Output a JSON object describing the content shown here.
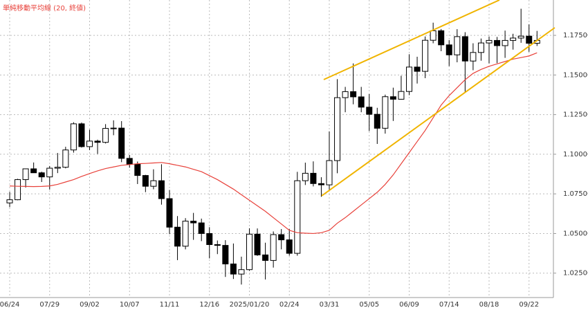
{
  "chart_data": {
    "type": "candlestick",
    "legend_text": "単純移動平均線 (20, 終値)",
    "categories": [
      "06/24",
      null,
      null,
      null,
      null,
      "07/29",
      null,
      null,
      null,
      null,
      "09/02",
      null,
      null,
      null,
      null,
      "10/07",
      null,
      null,
      null,
      null,
      "11/11",
      null,
      null,
      null,
      null,
      "12/16",
      null,
      null,
      null,
      null,
      "2025/01/20",
      null,
      null,
      null,
      null,
      "02/24",
      null,
      null,
      null,
      null,
      "03/31",
      null,
      null,
      null,
      null,
      "05/05",
      null,
      null,
      null,
      null,
      "06/09",
      null,
      null,
      null,
      null,
      "07/14",
      null,
      null,
      null,
      null,
      "08/18",
      null,
      null,
      null,
      null,
      "09/22",
      null
    ],
    "open": [
      1.0693,
      1.0713,
      1.084,
      1.0908,
      1.0883,
      1.0857,
      1.0912,
      1.0918,
      1.1027,
      1.1192,
      1.1048,
      1.1083,
      1.1075,
      1.1163,
      1.1165,
      1.0974,
      1.0937,
      1.0866,
      1.0798,
      1.0833,
      1.072,
      1.054,
      1.042,
      1.0578,
      1.0567,
      1.05,
      1.043,
      1.0425,
      1.0308,
      1.0244,
      1.0272,
      1.0496,
      1.0365,
      1.033,
      1.0493,
      1.046,
      1.0375,
      1.0833,
      1.088,
      1.0815,
      1.0807,
      1.096,
      1.1357,
      1.1395,
      1.1362,
      1.1297,
      1.1252,
      1.1164,
      1.1363,
      1.1347,
      1.1396,
      1.155,
      1.1523,
      1.1719,
      1.1779,
      1.169,
      1.1627,
      1.1742,
      1.1588,
      1.1642,
      1.1702,
      1.1718,
      1.1685,
      1.1718,
      1.1733,
      1.1745,
      1.17
    ],
    "high": [
      1.0762,
      1.0845,
      1.091,
      1.0948,
      1.089,
      1.0926,
      1.1008,
      1.1047,
      1.1202,
      1.12,
      1.1155,
      1.1092,
      1.119,
      1.1214,
      1.1209,
      1.0996,
      1.0954,
      1.087,
      1.0905,
      1.0937,
      1.0775,
      1.061,
      1.0597,
      1.063,
      1.0594,
      1.054,
      1.0456,
      1.0458,
      1.0437,
      1.0354,
      1.0533,
      1.0532,
      1.0442,
      1.0513,
      1.0528,
      1.0528,
      1.0889,
      1.0947,
      1.0955,
      1.0855,
      1.1144,
      1.1474,
      1.1425,
      1.1573,
      1.1425,
      1.138,
      1.1293,
      1.1376,
      1.142,
      1.1495,
      1.1631,
      1.1615,
      1.1743,
      1.183,
      1.179,
      1.172,
      1.1789,
      1.177,
      1.17,
      1.173,
      1.1743,
      1.174,
      1.178,
      1.176,
      1.1918,
      1.1819,
      1.1778
    ],
    "low": [
      1.0666,
      1.071,
      1.079,
      1.0885,
      1.0825,
      1.0777,
      1.0881,
      1.0911,
      1.101,
      1.1042,
      1.1026,
      1.1002,
      1.1068,
      1.112,
      1.095,
      1.0915,
      1.0812,
      1.0761,
      1.0779,
      1.0682,
      1.0496,
      1.0332,
      1.04,
      1.046,
      1.0452,
      1.0343,
      1.037,
      1.0226,
      1.0213,
      1.0178,
      1.0265,
      1.0359,
      1.021,
      1.0285,
      1.04,
      1.036,
      1.036,
      1.0806,
      1.0797,
      1.0732,
      1.0777,
      1.088,
      1.1265,
      1.1315,
      1.1265,
      1.1146,
      1.1065,
      1.113,
      1.121,
      1.1345,
      1.1373,
      1.1446,
      1.148,
      1.17,
      1.165,
      1.1556,
      1.158,
      1.1391,
      1.153,
      1.159,
      1.1573,
      1.1575,
      1.1608,
      1.166,
      1.1703,
      1.1646,
      1.1683
    ],
    "close": [
      1.0713,
      1.084,
      1.0908,
      1.0883,
      1.0857,
      1.0912,
      1.0918,
      1.1027,
      1.1192,
      1.1048,
      1.1083,
      1.1075,
      1.1163,
      1.1165,
      1.0974,
      1.0937,
      1.0866,
      1.0798,
      1.0833,
      1.072,
      1.054,
      1.042,
      1.0578,
      1.0567,
      1.05,
      1.043,
      1.0425,
      1.0308,
      1.0244,
      1.0272,
      1.0496,
      1.0365,
      1.033,
      1.0493,
      1.046,
      1.0375,
      1.0833,
      1.088,
      1.0815,
      1.0807,
      1.096,
      1.1357,
      1.1395,
      1.1362,
      1.1297,
      1.1252,
      1.1164,
      1.1363,
      1.1347,
      1.1396,
      1.155,
      1.1523,
      1.1719,
      1.1779,
      1.169,
      1.1627,
      1.1742,
      1.1588,
      1.1642,
      1.1702,
      1.1718,
      1.1685,
      1.1718,
      1.1733,
      1.1745,
      1.17,
      1.1718
    ],
    "moving_average": {
      "color": "#e8413a",
      "values": [
        1.08,
        1.0798,
        1.0797,
        1.0796,
        1.0797,
        1.08,
        1.081,
        1.0825,
        1.084,
        1.086,
        1.0878,
        1.0895,
        1.091,
        1.092,
        1.093,
        1.0935,
        1.094,
        1.0942,
        1.0945,
        1.0948,
        1.094,
        1.093,
        1.092,
        1.0905,
        1.089,
        1.0865,
        1.084,
        1.081,
        1.078,
        1.0745,
        1.071,
        1.0675,
        1.064,
        1.06,
        1.056,
        1.052,
        1.0505,
        1.0502,
        1.05,
        1.0505,
        1.052,
        1.0565,
        1.06,
        1.064,
        1.068,
        1.072,
        1.076,
        1.081,
        1.087,
        1.094,
        1.101,
        1.108,
        1.115,
        1.123,
        1.131,
        1.137,
        1.142,
        1.147,
        1.151,
        1.1535,
        1.1555,
        1.157,
        1.1585,
        1.16,
        1.161,
        1.162,
        1.164
      ]
    },
    "up_color": "#ffffff",
    "down_color": "#000000",
    "ylim": [
      1.0096,
      1.1973
    ],
    "yticks": [
      {
        "value": 1.025,
        "label": "1.02500"
      },
      {
        "value": 1.05,
        "label": "1.05000"
      },
      {
        "value": 1.075,
        "label": "1.07500"
      },
      {
        "value": 1.1,
        "label": "1.10000"
      },
      {
        "value": 1.125,
        "label": "1.12500"
      },
      {
        "value": 1.15,
        "label": "1.15000"
      },
      {
        "value": 1.175,
        "label": "1.17500"
      }
    ],
    "grid": true
  }
}
